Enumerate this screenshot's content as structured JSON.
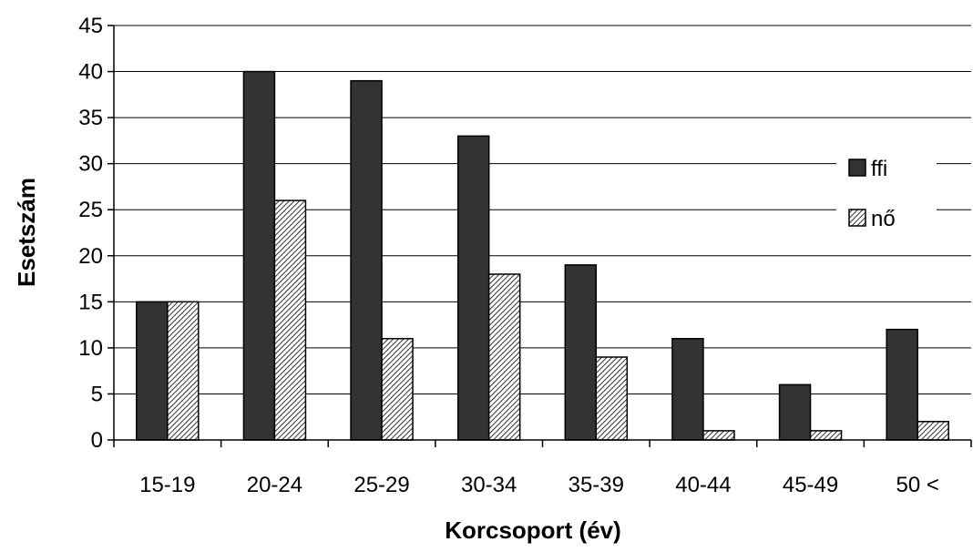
{
  "chart_data": {
    "type": "bar",
    "title": "",
    "xlabel": "Korcsoport (év)",
    "ylabel": "Esetszám",
    "ylim": [
      0,
      45
    ],
    "y_ticks": [
      0,
      5,
      10,
      15,
      20,
      25,
      30,
      35,
      40,
      45
    ],
    "categories": [
      "15-19",
      "20-24",
      "25-29",
      "30-34",
      "35-39",
      "40-44",
      "45-49",
      "50 <"
    ],
    "series": [
      {
        "name": "ffi",
        "values": [
          15,
          40,
          39,
          33,
          19,
          11,
          6,
          12
        ],
        "color": "#333333",
        "pattern": "solid"
      },
      {
        "name": "nő",
        "values": [
          15,
          26,
          11,
          18,
          9,
          1,
          1,
          2
        ],
        "color": "#ffffff",
        "pattern": "diagonal-hatch"
      }
    ],
    "grid": true,
    "legend_position": "right"
  }
}
